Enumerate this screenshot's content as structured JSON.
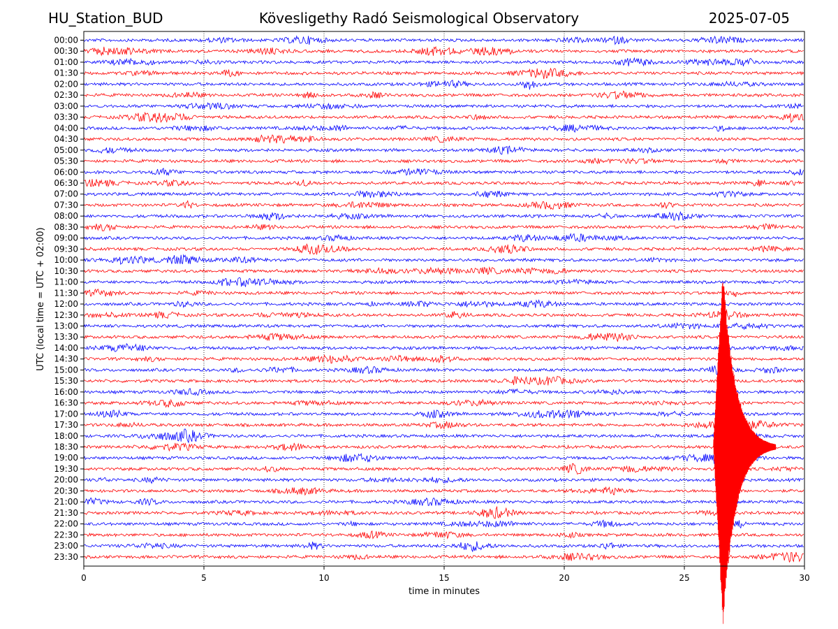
{
  "header": {
    "station": "HU_Station_BUD",
    "observatory": "Kövesligethy Radó Seismological Observatory",
    "date": "2025-07-05"
  },
  "chart_data": {
    "type": "line",
    "title": "Kövesligethy Radó Seismological Observatory",
    "xlabel": "time in minutes",
    "ylabel": "UTC (local time = UTC + 02:00)",
    "xlim": [
      0,
      30
    ],
    "x_ticks": [
      0,
      5,
      10,
      15,
      20,
      25,
      30
    ],
    "grid_x": true,
    "rows": [
      "00:00",
      "00:30",
      "01:00",
      "01:30",
      "02:00",
      "02:30",
      "03:00",
      "03:30",
      "04:00",
      "04:30",
      "05:00",
      "05:30",
      "06:00",
      "06:30",
      "07:00",
      "07:30",
      "08:00",
      "08:30",
      "09:00",
      "09:30",
      "10:00",
      "10:30",
      "11:00",
      "11:30",
      "12:00",
      "12:30",
      "13:00",
      "13:30",
      "14:00",
      "14:30",
      "15:00",
      "15:30",
      "16:00",
      "16:30",
      "17:00",
      "17:30",
      "18:00",
      "18:30",
      "19:00",
      "19:30",
      "20:00",
      "20:30",
      "21:00",
      "21:30",
      "22:00",
      "22:30",
      "23:00",
      "23:30"
    ],
    "trace_colors": [
      "#0000ff",
      "#ff0000"
    ],
    "event": {
      "row": "18:30",
      "onset_minute": 26.2,
      "peak_minute": 26.6,
      "coda_end_minute": 28.8
    }
  }
}
